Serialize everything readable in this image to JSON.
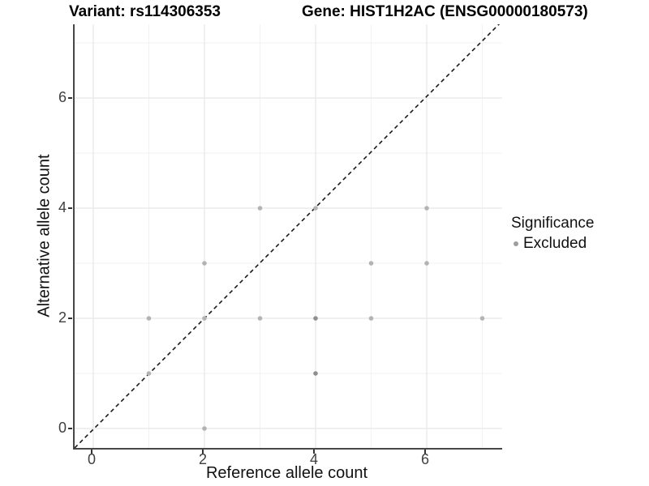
{
  "header": {
    "title_left": "Variant: rs114306353",
    "title_right": "Gene: HIST1H2AC (ENSG00000180573)"
  },
  "chart_data": {
    "type": "scatter",
    "title_left": "Variant: rs114306353",
    "title_right": "Gene: HIST1H2AC (ENSG00000180573)",
    "xlabel": "Reference allele count",
    "ylabel": "Alternative allele count",
    "xlim": [
      -0.35,
      7.35
    ],
    "ylim": [
      -0.35,
      7.35
    ],
    "x_major_ticks": [
      0,
      2,
      4,
      6
    ],
    "y_major_ticks": [
      0,
      2,
      4,
      6
    ],
    "x_minor_gridlines": [
      1,
      3,
      5,
      7
    ],
    "y_minor_gridlines": [
      1,
      3,
      5,
      7
    ],
    "grid": true,
    "identity_line": {
      "equation": "y = x",
      "style": "dashed",
      "color": "#1a1a1a"
    },
    "points": [
      {
        "x": 1,
        "y": 1,
        "shade": "light"
      },
      {
        "x": 1,
        "y": 2,
        "shade": "light"
      },
      {
        "x": 2,
        "y": 0,
        "shade": "light"
      },
      {
        "x": 2,
        "y": 2,
        "shade": "light"
      },
      {
        "x": 2,
        "y": 3,
        "shade": "light"
      },
      {
        "x": 3,
        "y": 2,
        "shade": "light"
      },
      {
        "x": 3,
        "y": 4,
        "shade": "light"
      },
      {
        "x": 4,
        "y": 1,
        "shade": "dark"
      },
      {
        "x": 4,
        "y": 2,
        "shade": "dark"
      },
      {
        "x": 4,
        "y": 4,
        "shade": "light"
      },
      {
        "x": 5,
        "y": 2,
        "shade": "light"
      },
      {
        "x": 5,
        "y": 3,
        "shade": "light"
      },
      {
        "x": 6,
        "y": 3,
        "shade": "light"
      },
      {
        "x": 6,
        "y": 4,
        "shade": "light"
      },
      {
        "x": 7,
        "y": 2,
        "shade": "light"
      }
    ],
    "legend": {
      "title": "Significance",
      "position": "right",
      "items": [
        {
          "label": "Excluded",
          "color": "#9e9e9e"
        }
      ]
    },
    "colors": {
      "point_light": "#b3b3b3",
      "point_dark": "#8f8f8f",
      "grid_major": "#e8e8e8",
      "grid_minor": "#f2f2f2",
      "axis_line": "#474747",
      "tick_label": "#404040",
      "identity_line": "#1a1a1a"
    }
  }
}
